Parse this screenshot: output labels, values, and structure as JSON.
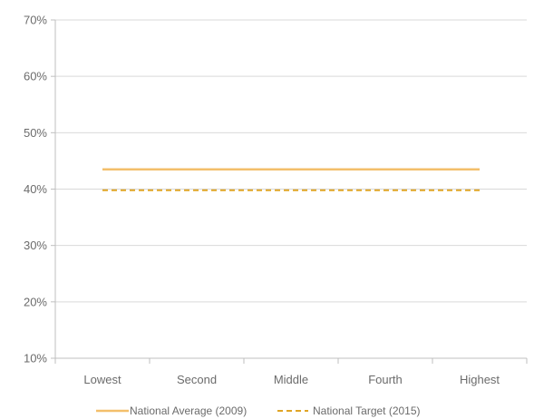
{
  "chart_data": {
    "type": "line",
    "title": "",
    "xlabel": "",
    "ylabel": "",
    "categories": [
      "Lowest",
      "Second",
      "Middle",
      "Fourth",
      "Highest"
    ],
    "y_ticks": [
      "10%",
      "20%",
      "30%",
      "40%",
      "50%",
      "60%",
      "70%"
    ],
    "ylim": [
      10,
      70
    ],
    "grid": "horizontal",
    "legend_position": "bottom",
    "series": [
      {
        "name": "National Average (2009)",
        "values": [
          43.5,
          43.5,
          43.5,
          43.5,
          43.5
        ],
        "color": "#f3bf6b",
        "style": "solid"
      },
      {
        "name": "National Target (2015)",
        "values": [
          39.8,
          39.8,
          39.8,
          39.8,
          39.8
        ],
        "color": "#e0a526",
        "style": "dashed"
      }
    ]
  }
}
